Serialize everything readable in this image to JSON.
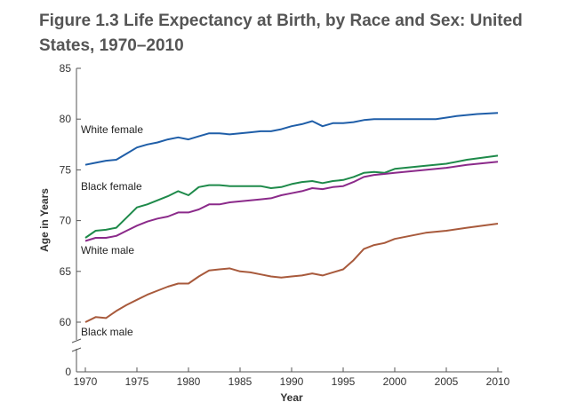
{
  "chart_data": {
    "type": "line",
    "title": "Figure 1.3 Life Expectancy at Birth, by Race and Sex: United States, 1970–2010",
    "xlabel": "Year",
    "ylabel": "Age in Years",
    "xlim": [
      1970,
      2010
    ],
    "ylim": [
      0,
      85
    ],
    "y_axis_break": [
      0,
      60
    ],
    "xticks": [
      "1970",
      "1975",
      "1980",
      "1985",
      "1990",
      "1995",
      "2000",
      "2005",
      "2010"
    ],
    "yticks": [
      "0",
      "60",
      "65",
      "70",
      "75",
      "80",
      "85"
    ],
    "grid": false,
    "series": [
      {
        "name": "White female",
        "color": "#1f5ea8",
        "x": [
          1970,
          1971,
          1972,
          1973,
          1974,
          1975,
          1976,
          1977,
          1978,
          1979,
          1980,
          1981,
          1982,
          1983,
          1984,
          1985,
          1986,
          1987,
          1988,
          1989,
          1990,
          1991,
          1992,
          1993,
          1994,
          1995,
          1996,
          1997,
          1998,
          1999,
          2000,
          2003,
          2004,
          2006,
          2008,
          2010
        ],
        "y": [
          75.5,
          75.7,
          75.9,
          76.0,
          76.6,
          77.2,
          77.5,
          77.7,
          78.0,
          78.2,
          78.0,
          78.3,
          78.6,
          78.6,
          78.5,
          78.6,
          78.7,
          78.8,
          78.8,
          79.0,
          79.3,
          79.5,
          79.8,
          79.3,
          79.6,
          79.6,
          79.7,
          79.9,
          80.0,
          80.0,
          80.0,
          80.0,
          80.0,
          80.3,
          80.5,
          80.6
        ]
      },
      {
        "name": "Black female",
        "color": "#1e8a4a",
        "x": [
          1970,
          1971,
          1972,
          1973,
          1974,
          1975,
          1976,
          1977,
          1978,
          1979,
          1980,
          1981,
          1982,
          1983,
          1984,
          1985,
          1986,
          1987,
          1988,
          1989,
          1990,
          1991,
          1992,
          1993,
          1994,
          1995,
          1996,
          1997,
          1998,
          1999,
          2000,
          2003,
          2005,
          2007,
          2010
        ],
        "y": [
          68.3,
          69.0,
          69.1,
          69.3,
          70.3,
          71.3,
          71.6,
          72.0,
          72.4,
          72.9,
          72.5,
          73.3,
          73.5,
          73.5,
          73.4,
          73.4,
          73.4,
          73.4,
          73.2,
          73.3,
          73.6,
          73.8,
          73.9,
          73.7,
          73.9,
          74.0,
          74.3,
          74.7,
          74.8,
          74.7,
          75.1,
          75.4,
          75.6,
          76.0,
          76.4
        ]
      },
      {
        "name": "White male",
        "color": "#8b2a8a",
        "x": [
          1970,
          1971,
          1972,
          1973,
          1974,
          1975,
          1976,
          1977,
          1978,
          1979,
          1980,
          1981,
          1982,
          1983,
          1984,
          1985,
          1986,
          1987,
          1988,
          1989,
          1990,
          1991,
          1992,
          1993,
          1994,
          1995,
          1996,
          1997,
          1998,
          1999,
          2000,
          2003,
          2005,
          2007,
          2010
        ],
        "y": [
          68.0,
          68.3,
          68.3,
          68.5,
          69.0,
          69.5,
          69.9,
          70.2,
          70.4,
          70.8,
          70.8,
          71.1,
          71.6,
          71.6,
          71.8,
          71.9,
          72.0,
          72.1,
          72.2,
          72.5,
          72.7,
          72.9,
          73.2,
          73.1,
          73.3,
          73.4,
          73.8,
          74.3,
          74.5,
          74.6,
          74.7,
          75.0,
          75.2,
          75.5,
          75.8
        ]
      },
      {
        "name": "Black male",
        "color": "#a85a3c",
        "x": [
          1970,
          1971,
          1972,
          1973,
          1974,
          1975,
          1976,
          1977,
          1978,
          1979,
          1980,
          1981,
          1982,
          1983,
          1984,
          1985,
          1986,
          1987,
          1988,
          1989,
          1990,
          1991,
          1992,
          1993,
          1994,
          1995,
          1996,
          1997,
          1998,
          1999,
          2000,
          2003,
          2005,
          2007,
          2010
        ],
        "y": [
          60.0,
          60.5,
          60.4,
          61.1,
          61.7,
          62.2,
          62.7,
          63.1,
          63.5,
          63.8,
          63.8,
          64.5,
          65.1,
          65.2,
          65.3,
          65.0,
          64.9,
          64.7,
          64.5,
          64.4,
          64.5,
          64.6,
          64.8,
          64.6,
          64.9,
          65.2,
          66.1,
          67.2,
          67.6,
          67.8,
          68.2,
          68.8,
          69.0,
          69.3,
          69.7
        ]
      }
    ]
  }
}
